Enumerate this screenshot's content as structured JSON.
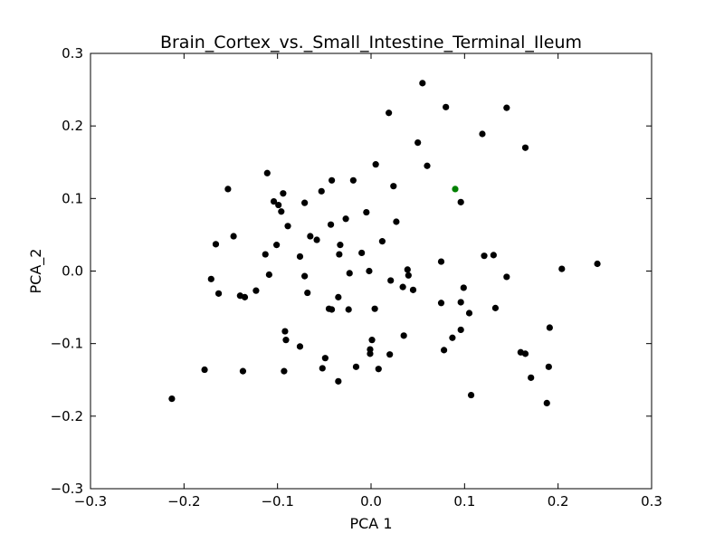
{
  "chart_data": {
    "type": "scatter",
    "title": "Brain_Cortex_vs._Small_Intestine_Terminal_Ileum",
    "xlabel": "PCA 1",
    "ylabel": "PCA_2",
    "xlim": [
      -0.3,
      0.3
    ],
    "ylim": [
      -0.3,
      0.3
    ],
    "xticks": [
      -0.3,
      -0.2,
      -0.1,
      0.0,
      0.1,
      0.2,
      0.3
    ],
    "yticks": [
      -0.3,
      -0.2,
      -0.1,
      0.0,
      0.1,
      0.2,
      0.3
    ],
    "xtick_labels": [
      "−0.3",
      "−0.2",
      "−0.1",
      "0.0",
      "0.1",
      "0.2",
      "0.3"
    ],
    "ytick_labels": [
      "−0.3",
      "−0.2",
      "−0.1",
      "0.0",
      "0.1",
      "0.2",
      "0.3"
    ],
    "grid": false,
    "legend": "none",
    "series": [
      {
        "color": "#000000",
        "points": [
          [
            -0.213,
            -0.176
          ],
          [
            -0.178,
            -0.136
          ],
          [
            -0.171,
            -0.011
          ],
          [
            -0.166,
            0.037
          ],
          [
            -0.163,
            -0.031
          ],
          [
            -0.153,
            0.113
          ],
          [
            -0.147,
            0.048
          ],
          [
            -0.14,
            -0.034
          ],
          [
            -0.135,
            -0.036
          ],
          [
            -0.137,
            -0.138
          ],
          [
            -0.123,
            -0.027
          ],
          [
            -0.113,
            0.023
          ],
          [
            -0.111,
            0.135
          ],
          [
            -0.109,
            -0.005
          ],
          [
            -0.104,
            0.096
          ],
          [
            -0.099,
            0.091
          ],
          [
            -0.101,
            0.036
          ],
          [
            -0.094,
            0.107
          ],
          [
            -0.096,
            0.082
          ],
          [
            -0.089,
            0.062
          ],
          [
            -0.092,
            -0.083
          ],
          [
            -0.091,
            -0.095
          ],
          [
            -0.093,
            -0.138
          ],
          [
            -0.076,
            -0.104
          ],
          [
            -0.076,
            0.02
          ],
          [
            -0.071,
            0.094
          ],
          [
            -0.071,
            -0.007
          ],
          [
            -0.068,
            -0.03
          ],
          [
            -0.065,
            0.048
          ],
          [
            -0.058,
            0.043
          ],
          [
            -0.053,
            0.11
          ],
          [
            -0.049,
            -0.12
          ],
          [
            -0.052,
            -0.134
          ],
          [
            -0.045,
            -0.052
          ],
          [
            -0.042,
            -0.053
          ],
          [
            -0.043,
            0.064
          ],
          [
            -0.042,
            0.125
          ],
          [
            -0.034,
            0.023
          ],
          [
            -0.033,
            0.036
          ],
          [
            -0.035,
            -0.036
          ],
          [
            -0.035,
            -0.152
          ],
          [
            -0.027,
            0.072
          ],
          [
            -0.024,
            -0.053
          ],
          [
            -0.023,
            -0.003
          ],
          [
            -0.019,
            0.125
          ],
          [
            -0.016,
            -0.132
          ],
          [
            -0.01,
            0.025
          ],
          [
            -0.005,
            0.081
          ],
          [
            -0.002,
            0.0
          ],
          [
            -0.001,
            -0.108
          ],
          [
            -0.001,
            -0.114
          ],
          [
            0.001,
            -0.095
          ],
          [
            0.004,
            -0.052
          ],
          [
            0.005,
            0.147
          ],
          [
            0.008,
            -0.135
          ],
          [
            0.012,
            0.041
          ],
          [
            0.019,
            0.218
          ],
          [
            0.021,
            -0.013
          ],
          [
            0.02,
            -0.115
          ],
          [
            0.024,
            0.117
          ],
          [
            0.027,
            0.068
          ],
          [
            0.034,
            -0.022
          ],
          [
            0.035,
            -0.089
          ],
          [
            0.039,
            0.002
          ],
          [
            0.04,
            -0.006
          ],
          [
            0.045,
            -0.026
          ],
          [
            0.05,
            0.177
          ],
          [
            0.055,
            0.259
          ],
          [
            0.06,
            0.145
          ],
          [
            0.075,
            0.013
          ],
          [
            0.075,
            -0.044
          ],
          [
            0.078,
            -0.109
          ],
          [
            0.08,
            0.226
          ],
          [
            0.087,
            -0.092
          ],
          [
            0.096,
            0.095
          ],
          [
            0.096,
            -0.081
          ],
          [
            0.096,
            -0.043
          ],
          [
            0.099,
            -0.023
          ],
          [
            0.105,
            -0.058
          ],
          [
            0.107,
            -0.171
          ],
          [
            0.119,
            0.189
          ],
          [
            0.121,
            0.021
          ],
          [
            0.131,
            0.022
          ],
          [
            0.133,
            -0.051
          ],
          [
            0.145,
            0.225
          ],
          [
            0.145,
            -0.008
          ],
          [
            0.16,
            -0.112
          ],
          [
            0.165,
            0.17
          ],
          [
            0.165,
            -0.114
          ],
          [
            0.171,
            -0.147
          ],
          [
            0.188,
            -0.182
          ],
          [
            0.19,
            -0.132
          ],
          [
            0.191,
            -0.078
          ],
          [
            0.204,
            0.003
          ],
          [
            0.242,
            0.01
          ]
        ]
      },
      {
        "color": "#008000",
        "points": [
          [
            0.09,
            0.113
          ]
        ]
      }
    ]
  }
}
